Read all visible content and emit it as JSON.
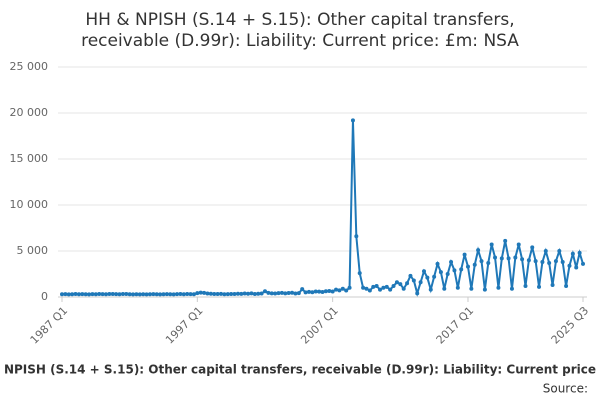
{
  "chart_data": {
    "type": "line",
    "title": [
      "HH & NPISH (S.14 + S.15): Other capital transfers,",
      "receivable (D.99r): Liability: Current price: £m: NSA"
    ],
    "x_label": "NPISH (S.14 + S.15): Other capital transfers, receivable (D.99r): Liability: Current price",
    "source": "Source:",
    "categories": [
      "1987 Q1",
      null,
      null,
      null,
      null,
      null,
      null,
      null,
      null,
      null,
      null,
      null,
      null,
      null,
      null,
      null,
      null,
      null,
      null,
      null,
      null,
      null,
      null,
      null,
      null,
      null,
      null,
      null,
      null,
      null,
      null,
      null,
      null,
      null,
      null,
      null,
      null,
      null,
      null,
      null,
      "1997 Q1",
      null,
      null,
      null,
      null,
      null,
      null,
      null,
      null,
      null,
      null,
      null,
      null,
      null,
      null,
      null,
      null,
      null,
      null,
      null,
      null,
      null,
      null,
      null,
      null,
      null,
      null,
      null,
      null,
      null,
      null,
      null,
      null,
      null,
      null,
      null,
      null,
      null,
      null,
      null,
      "2007 Q1",
      null,
      null,
      null,
      null,
      null,
      null,
      null,
      null,
      null,
      null,
      null,
      null,
      null,
      null,
      null,
      null,
      null,
      null,
      null,
      null,
      null,
      null,
      null,
      null,
      null,
      null,
      null,
      null,
      null,
      null,
      null,
      null,
      null,
      null,
      null,
      null,
      null,
      null,
      null,
      "2017 Q1",
      null,
      null,
      null,
      null,
      null,
      null,
      null,
      null,
      null,
      null,
      null,
      null,
      null,
      null,
      null,
      null,
      null,
      null,
      null,
      null,
      null,
      null,
      null,
      null,
      null,
      null,
      null,
      null,
      null,
      null,
      null,
      null,
      null,
      "2025 Q3"
    ],
    "series": [
      {
        "color": "#1f78b8",
        "values": [
          300,
          310,
          290,
          300,
          320,
          300,
          310,
          300,
          290,
          310,
          300,
          320,
          310,
          300,
          330,
          320,
          310,
          300,
          320,
          330,
          300,
          290,
          300,
          280,
          300,
          290,
          300,
          310,
          300,
          290,
          300,
          310,
          300,
          290,
          310,
          320,
          300,
          330,
          310,
          300,
          420,
          480,
          450,
          380,
          350,
          330,
          320,
          340,
          300,
          310,
          330,
          320,
          360,
          340,
          380,
          350,
          400,
          330,
          350,
          380,
          620,
          450,
          400,
          380,
          420,
          450,
          400,
          430,
          460,
          380,
          420,
          850,
          500,
          560,
          520,
          600,
          580,
          540,
          620,
          650,
          600,
          800,
          720,
          900,
          700,
          1000,
          19200,
          6600,
          2600,
          1000,
          900,
          700,
          1100,
          1200,
          800,
          1000,
          1100,
          800,
          1200,
          1600,
          1400,
          900,
          1500,
          2300,
          1800,
          400,
          1600,
          2800,
          2100,
          800,
          2200,
          3600,
          2700,
          900,
          2500,
          3800,
          2900,
          1000,
          3000,
          4600,
          3300,
          900,
          3500,
          5100,
          3900,
          800,
          3700,
          5700,
          4300,
          1000,
          4200,
          6100,
          4200,
          900,
          4300,
          5700,
          4100,
          1200,
          4000,
          5400,
          3900,
          1100,
          3800,
          5000,
          3700,
          1300,
          3900,
          5000,
          3800,
          1200,
          3400,
          4700,
          3200,
          4800,
          3600
        ]
      }
    ],
    "ylim": [
      0,
      25000
    ],
    "yticks": [
      0,
      {
        "value": 5000,
        "label": "5 000"
      },
      {
        "value": 10000,
        "label": "10 000"
      },
      {
        "value": 15000,
        "label": "15 000"
      },
      {
        "value": 20000,
        "label": "20 000"
      },
      {
        "value": 25000,
        "label": "25 000"
      }
    ],
    "grid": true
  }
}
